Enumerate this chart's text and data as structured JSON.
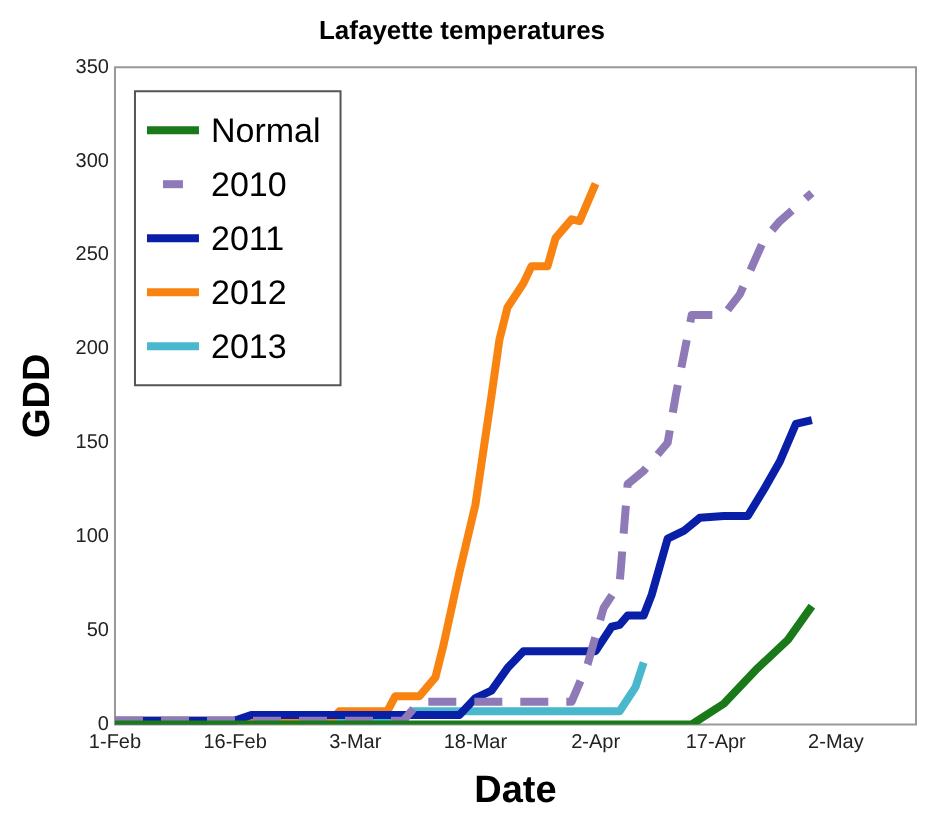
{
  "chart_data": {
    "type": "line",
    "title": "Lafayette temperatures",
    "xlabel": "Date",
    "ylabel": "GDD",
    "xlim": [
      "--02-01",
      "--05-12"
    ],
    "xticks": [
      {
        "value": "--02-01",
        "label": "1-Feb"
      },
      {
        "value": "--02-16",
        "label": "16-Feb"
      },
      {
        "value": "--03-03",
        "label": "3-Mar"
      },
      {
        "value": "--03-18",
        "label": "18-Mar"
      },
      {
        "value": "--04-02",
        "label": "2-Apr"
      },
      {
        "value": "--04-17",
        "label": "17-Apr"
      },
      {
        "value": "--05-02",
        "label": "2-May"
      }
    ],
    "ylim": [
      0,
      350
    ],
    "yticks": [
      0,
      50,
      100,
      150,
      200,
      250,
      300,
      350
    ],
    "grid": false,
    "legend": "top left",
    "marker": "none",
    "series": [
      {
        "name": "Normal",
        "color": "#1a7a1a",
        "line_style": "solid",
        "x": [
          "--02-01",
          "--04-14",
          "--04-18",
          "--04-22",
          "--04-26",
          "--04-29"
        ],
        "values": [
          0,
          0,
          11,
          29,
          45,
          63
        ]
      },
      {
        "name": "2010",
        "color": "#8f7ab8",
        "line_style": "dashed",
        "x": [
          "--02-01",
          "--03-09",
          "--03-11",
          "--03-30",
          "--04-01",
          "--04-03",
          "--04-05",
          "--04-06",
          "--04-08",
          "--04-11",
          "--04-12",
          "--04-14",
          "--04-18",
          "--04-20",
          "--04-23",
          "--04-25",
          "--04-29"
        ],
        "values": [
          2,
          2,
          12,
          12,
          32,
          62,
          75,
          128,
          135,
          150,
          175,
          218,
          218,
          229,
          258,
          268,
          283
        ]
      },
      {
        "name": "2011",
        "color": "#0a1fa8",
        "line_style": "solid",
        "x": [
          "--02-01",
          "--02-16",
          "--02-18",
          "--03-16",
          "--03-18",
          "--03-20",
          "--03-22",
          "--03-24",
          "--04-02",
          "--04-04",
          "--04-05",
          "--04-06",
          "--04-08",
          "--04-09",
          "--04-11",
          "--04-13",
          "--04-15",
          "--04-18",
          "--04-21",
          "--04-23",
          "--04-25",
          "--04-27",
          "--04-29"
        ],
        "values": [
          2,
          2,
          5,
          5,
          14,
          18,
          30,
          39,
          39,
          52,
          53,
          58,
          58,
          69,
          99,
          103,
          110,
          111,
          111,
          125,
          140,
          160,
          162
        ]
      },
      {
        "name": "2012",
        "color": "#f98310",
        "line_style": "solid",
        "x": [
          "--02-01",
          "--02-28",
          "--03-01",
          "--03-07",
          "--03-08",
          "--03-11",
          "--03-13",
          "--03-14",
          "--03-16",
          "--03-18",
          "--03-20",
          "--03-21",
          "--03-22",
          "--03-24",
          "--03-25",
          "--03-27",
          "--03-28",
          "--03-30",
          "--03-31",
          "--04-02"
        ],
        "values": [
          2,
          2,
          7,
          7,
          15,
          15,
          25,
          42,
          81,
          117,
          175,
          205,
          222,
          235,
          244,
          244,
          259,
          269,
          268,
          288
        ]
      },
      {
        "name": "2013",
        "color": "#4ab8cc",
        "line_style": "solid",
        "x": [
          "--02-01",
          "--03-09",
          "--03-10",
          "--04-05",
          "--04-07",
          "--04-08"
        ],
        "values": [
          2,
          2,
          7,
          7,
          20,
          33
        ]
      }
    ]
  }
}
